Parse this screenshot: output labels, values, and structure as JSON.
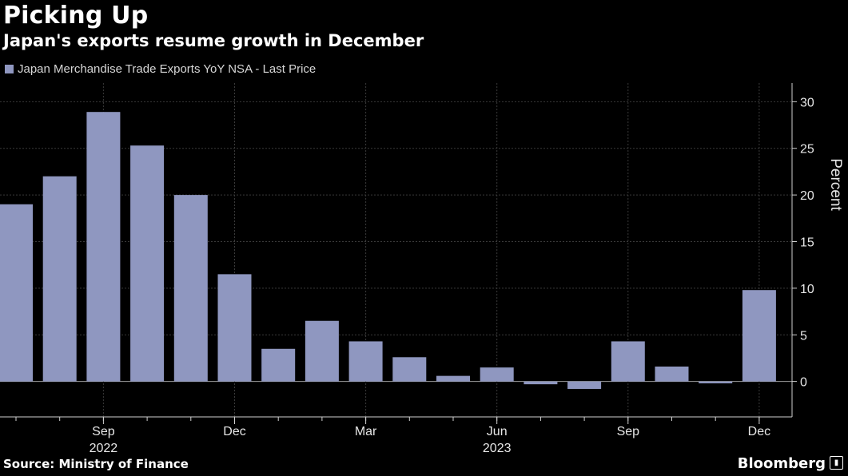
{
  "header": {
    "title": "Picking Up",
    "subtitle": "Japan's exports resume growth in December"
  },
  "legend": {
    "label": "Japan Merchandise Trade Exports YoY NSA - Last Price"
  },
  "footer": {
    "source": "Source: Ministry of Finance",
    "brand": "Bloomberg"
  },
  "colors": {
    "bar": "#8f97c0",
    "background": "#000000",
    "grid": "#3a3a3a",
    "axis": "#d0d0d0"
  },
  "chart_data": {
    "type": "bar",
    "categories": [
      "Jul 2022",
      "Aug 2022",
      "Sep 2022",
      "Oct 2022",
      "Nov 2022",
      "Dec 2022",
      "Jan 2023",
      "Feb 2023",
      "Mar 2023",
      "Apr 2023",
      "May 2023",
      "Jun 2023",
      "Jul 2023",
      "Aug 2023",
      "Sep 2023",
      "Oct 2023",
      "Nov 2023",
      "Dec 2023"
    ],
    "series": [
      {
        "name": "Japan Merchandise Trade Exports YoY NSA - Last Price",
        "values": [
          19.0,
          22.0,
          28.9,
          25.3,
          20.0,
          11.5,
          3.5,
          6.5,
          4.3,
          2.6,
          0.6,
          1.5,
          -0.3,
          -0.8,
          4.3,
          1.6,
          -0.2,
          9.8
        ]
      }
    ],
    "x_tick_labels": [
      {
        "label": "Sep",
        "index": 2
      },
      {
        "label": "Dec",
        "index": 5
      },
      {
        "label": "Mar",
        "index": 8
      },
      {
        "label": "Jun",
        "index": 11
      },
      {
        "label": "Sep",
        "index": 14
      },
      {
        "label": "Dec",
        "index": 17
      }
    ],
    "year_labels": [
      {
        "label": "2022",
        "index": 2
      },
      {
        "label": "2023",
        "index": 11
      }
    ],
    "y_ticks": [
      0,
      5,
      10,
      15,
      20,
      25,
      30
    ],
    "ylim": [
      -3.8,
      32
    ],
    "ylabel": "Percent",
    "xlabel": "",
    "grid": true,
    "y_axis_position": "right"
  }
}
